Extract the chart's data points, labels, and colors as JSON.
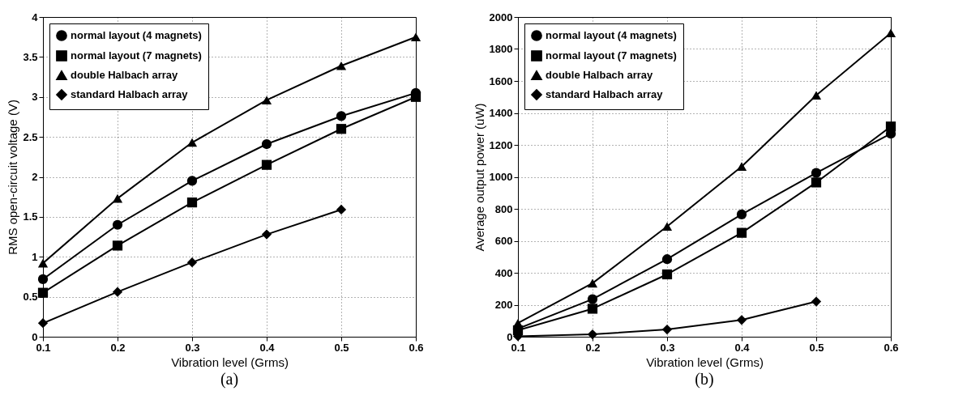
{
  "chart_data": [
    {
      "type": "line",
      "xlabel": "Vibration level (Grms)",
      "ylabel": "RMS open-circuit voltage (V)",
      "annotations": [
        "(a)"
      ],
      "x": [
        0.1,
        0.2,
        0.3,
        0.4,
        0.5,
        0.6
      ],
      "xlim": [
        0.1,
        0.6
      ],
      "xticks": [
        0.1,
        0.2,
        0.3,
        0.4,
        0.5,
        0.6
      ],
      "ylim": [
        0,
        4
      ],
      "yticks": [
        0,
        0.5,
        1,
        1.5,
        2,
        2.5,
        3,
        3.5,
        4
      ],
      "grid": true,
      "legend": "top left",
      "line_style": "solid",
      "series": [
        {
          "name": "normal layout (4 magnets)",
          "color": "#000000",
          "marker": "circle",
          "values": [
            0.72,
            1.4,
            1.95,
            2.41,
            2.76,
            3.05
          ]
        },
        {
          "name": "normal layout (7 magnets)",
          "color": "#000000",
          "marker": "square",
          "values": [
            0.55,
            1.14,
            1.68,
            2.15,
            2.6,
            3.0
          ]
        },
        {
          "name": "double Halbach array",
          "color": "#000000",
          "marker": "triangle",
          "values": [
            0.92,
            1.73,
            2.43,
            2.96,
            3.39,
            3.75
          ]
        },
        {
          "name": "standard Halbach array",
          "color": "#000000",
          "marker": "diamond",
          "values": [
            0.17,
            0.56,
            0.93,
            1.28,
            1.59,
            null
          ]
        }
      ]
    },
    {
      "type": "line",
      "xlabel": "Vibration level (Grms)",
      "ylabel": "Average output power (uW)",
      "annotations": [
        "(b)"
      ],
      "x": [
        0.1,
        0.2,
        0.3,
        0.4,
        0.5,
        0.6
      ],
      "xlim": [
        0.1,
        0.6
      ],
      "xticks": [
        0.1,
        0.2,
        0.3,
        0.4,
        0.5,
        0.6
      ],
      "ylim": [
        0,
        2000
      ],
      "yticks": [
        0,
        200,
        400,
        600,
        800,
        1000,
        1200,
        1400,
        1600,
        1800,
        2000
      ],
      "grid": true,
      "legend": "top left",
      "line_style": "solid",
      "series": [
        {
          "name": "normal layout (4 magnets)",
          "color": "#000000",
          "marker": "circle",
          "values": [
            50,
            235,
            485,
            765,
            1025,
            1270
          ]
        },
        {
          "name": "normal layout (7 magnets)",
          "color": "#000000",
          "marker": "square",
          "values": [
            40,
            175,
            390,
            650,
            965,
            1315
          ]
        },
        {
          "name": "double Halbach array",
          "color": "#000000",
          "marker": "triangle",
          "values": [
            85,
            335,
            690,
            1065,
            1510,
            1900
          ]
        },
        {
          "name": "standard Halbach array",
          "color": "#000000",
          "marker": "diamond",
          "values": [
            3,
            15,
            45,
            105,
            220,
            null
          ]
        }
      ]
    }
  ]
}
